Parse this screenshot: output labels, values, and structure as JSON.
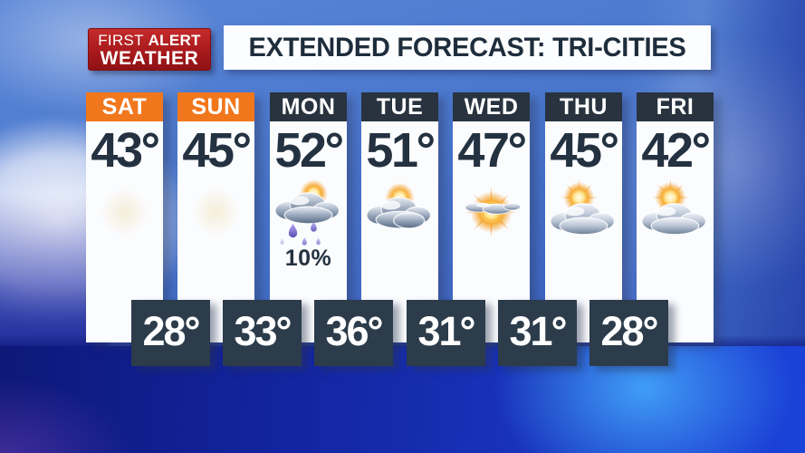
{
  "badge": {
    "line1_regular": "FIRST",
    "line1_bold": "ALERT",
    "line2": "WEATHER"
  },
  "title_bar": {
    "title": "EXTENDED FORECAST: TRI-CITIES"
  },
  "forecast": {
    "days": [
      {
        "label": "SAT",
        "high": "43°",
        "icon": "faded-sun-icon",
        "condition": "hazy sun",
        "header_color": "#f1771d",
        "precip": ""
      },
      {
        "label": "SUN",
        "high": "45°",
        "icon": "faded-sun-icon",
        "condition": "hazy sun",
        "header_color": "#f1771d",
        "precip": ""
      },
      {
        "label": "MON",
        "high": "52°",
        "icon": "rain-showers-icon",
        "condition": "rain showers",
        "header_color": "#28333f",
        "precip": "10%"
      },
      {
        "label": "TUE",
        "high": "51°",
        "icon": "mostly-cloudy-icon",
        "condition": "mostly cloudy",
        "header_color": "#28333f",
        "precip": ""
      },
      {
        "label": "WED",
        "high": "47°",
        "icon": "mostly-sunny-icon",
        "condition": "mostly sunny",
        "header_color": "#28333f",
        "precip": ""
      },
      {
        "label": "THU",
        "high": "45°",
        "icon": "partly-cloudy-icon",
        "condition": "partly cloudy",
        "header_color": "#28333f",
        "precip": ""
      },
      {
        "label": "FRI",
        "high": "42°",
        "icon": "partly-cloudy-icon",
        "condition": "partly cloudy",
        "header_color": "#28333f",
        "precip": ""
      }
    ],
    "lows": [
      "28°",
      "33°",
      "36°",
      "31°",
      "31°",
      "28°"
    ]
  },
  "colors": {
    "day_header_orange": "#f1771d",
    "day_header_navy": "#28333f",
    "low_box_navy": "#2c3c4b",
    "temp_text_navy": "#233140",
    "badge_red": "#a81a1d",
    "title_text_navy": "#1e2d3c"
  },
  "chart_data": {
    "type": "table",
    "title": "EXTENDED FORECAST: TRI-CITIES",
    "columns": [
      "day",
      "high_f",
      "low_f",
      "condition",
      "precip_chance"
    ],
    "rows": [
      [
        "SAT",
        43,
        28,
        "hazy sun",
        ""
      ],
      [
        "SUN",
        45,
        33,
        "hazy sun",
        ""
      ],
      [
        "MON",
        52,
        36,
        "rain showers",
        "10%"
      ],
      [
        "TUE",
        51,
        31,
        "mostly cloudy",
        ""
      ],
      [
        "WED",
        47,
        31,
        "mostly sunny",
        ""
      ],
      [
        "THU",
        45,
        28,
        "partly cloudy",
        ""
      ],
      [
        "FRI",
        42,
        null,
        "partly cloudy",
        ""
      ]
    ]
  }
}
